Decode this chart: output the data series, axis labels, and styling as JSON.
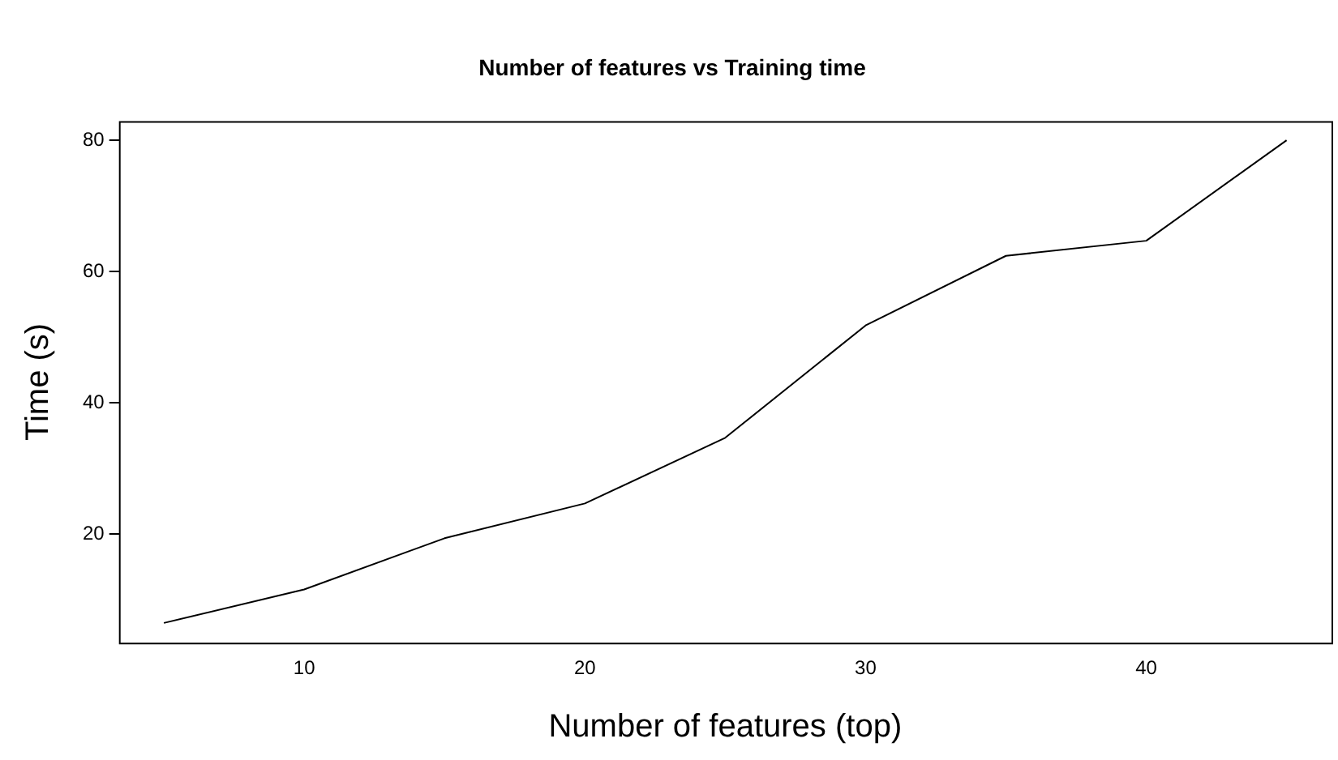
{
  "chart_data": {
    "type": "line",
    "title": "Number of features vs Training time",
    "xlabel": "Number of features (top)",
    "ylabel": "Time (s)",
    "x": [
      5,
      10,
      15,
      20,
      25,
      30,
      35,
      40,
      45
    ],
    "series": [
      {
        "color": "#000000",
        "values": [
          6.5,
          11.6,
          19.4,
          24.7,
          34.7,
          51.8,
          62.4,
          64.7,
          80
        ]
      }
    ],
    "xlim": [
      3.4,
      46.6
    ],
    "xticks": [
      10,
      20,
      30,
      40
    ],
    "ylim": [
      3.5,
      82.9
    ],
    "yticks": [
      20,
      40,
      60,
      80
    ],
    "grid": false,
    "legend": false,
    "marker": "none",
    "line_style": "solid"
  }
}
